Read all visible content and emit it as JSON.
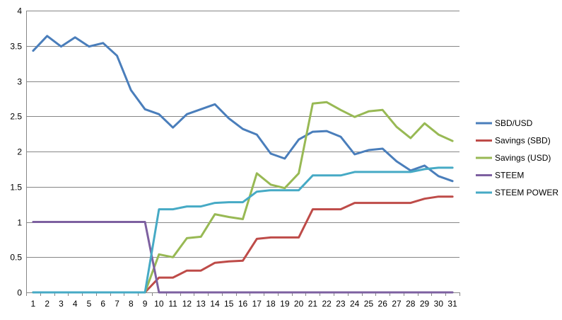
{
  "chart_data": {
    "type": "line",
    "title": "",
    "xlabel": "",
    "ylabel": "",
    "categories": [
      1,
      2,
      3,
      4,
      5,
      6,
      7,
      8,
      9,
      10,
      11,
      12,
      13,
      14,
      15,
      16,
      17,
      18,
      19,
      20,
      21,
      22,
      23,
      24,
      25,
      26,
      27,
      28,
      29,
      30,
      31
    ],
    "ylim": [
      0,
      4
    ],
    "yticks": [
      "0",
      "0.5",
      "1",
      "1.5",
      "2",
      "2.5",
      "3",
      "3.5",
      "4"
    ],
    "grid": "horizontal",
    "legend_position": "right",
    "series": [
      {
        "name": "SBD/USD",
        "color": "#4a7ebb",
        "values": [
          3.43,
          3.64,
          3.49,
          3.62,
          3.49,
          3.54,
          3.36,
          2.87,
          2.6,
          2.53,
          2.34,
          2.53,
          2.6,
          2.67,
          2.47,
          2.32,
          2.24,
          1.97,
          1.9,
          2.17,
          2.28,
          2.29,
          2.21,
          1.96,
          2.02,
          2.04,
          1.86,
          1.73,
          1.8,
          1.65,
          1.58
        ]
      },
      {
        "name": "Savings (SBD)",
        "color": "#be4b48",
        "values": [
          0,
          0,
          0,
          0,
          0,
          0,
          0,
          0,
          0,
          0.21,
          0.21,
          0.31,
          0.31,
          0.42,
          0.44,
          0.45,
          0.76,
          0.78,
          0.78,
          0.78,
          1.18,
          1.18,
          1.18,
          1.27,
          1.27,
          1.27,
          1.27,
          1.27,
          1.33,
          1.36,
          1.36
        ]
      },
      {
        "name": "Savings (USD)",
        "color": "#98b954",
        "values": [
          0,
          0,
          0,
          0,
          0,
          0,
          0,
          0,
          0,
          0.54,
          0.5,
          0.77,
          0.79,
          1.11,
          1.07,
          1.04,
          1.69,
          1.53,
          1.48,
          1.69,
          2.68,
          2.7,
          2.59,
          2.49,
          2.57,
          2.59,
          2.35,
          2.19,
          2.4,
          2.24,
          2.15
        ]
      },
      {
        "name": "STEEM",
        "color": "#7d60a0",
        "values": [
          1,
          1,
          1,
          1,
          1,
          1,
          1,
          1,
          1,
          0,
          0,
          0,
          0,
          0,
          0,
          0,
          0,
          0,
          0,
          0,
          0,
          0,
          0,
          0,
          0,
          0,
          0,
          0,
          0,
          0,
          0
        ]
      },
      {
        "name": "STEEM POWER",
        "color": "#46aac5",
        "values": [
          0,
          0,
          0,
          0,
          0,
          0,
          0,
          0,
          0,
          1.18,
          1.18,
          1.22,
          1.22,
          1.27,
          1.28,
          1.28,
          1.43,
          1.45,
          1.45,
          1.45,
          1.66,
          1.66,
          1.66,
          1.71,
          1.71,
          1.71,
          1.71,
          1.71,
          1.75,
          1.77,
          1.77
        ]
      }
    ]
  }
}
